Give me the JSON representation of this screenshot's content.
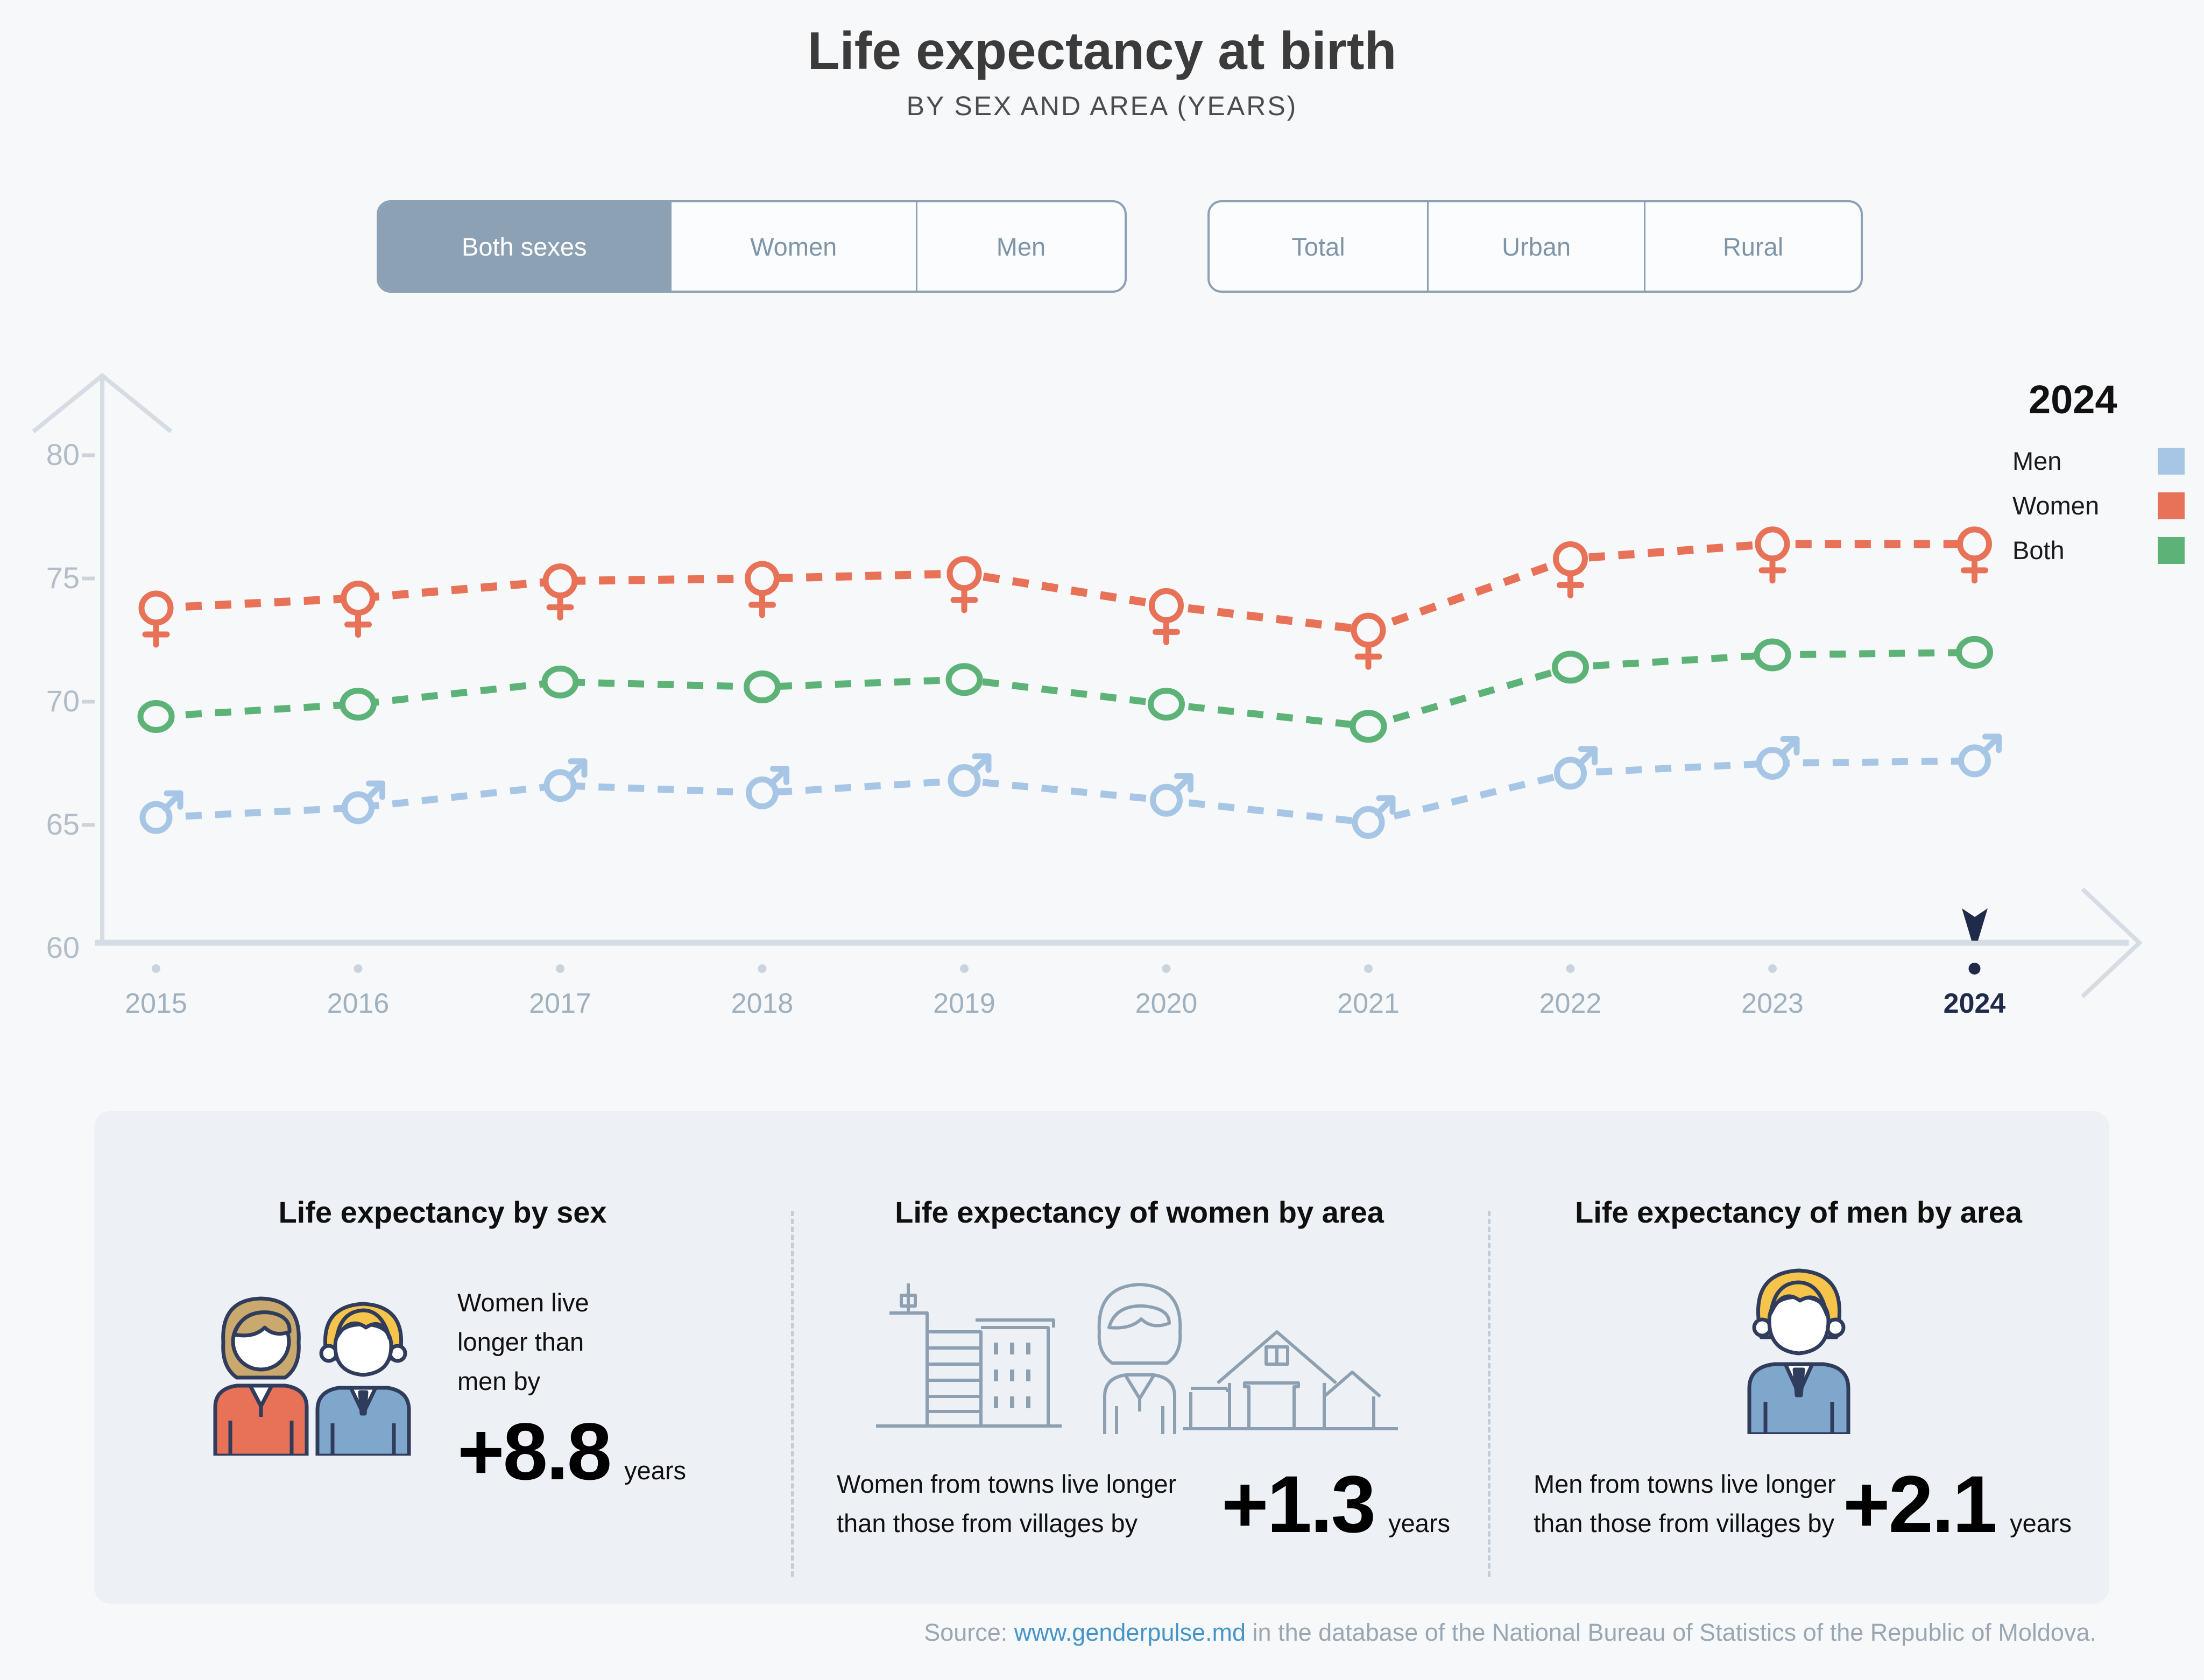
{
  "title": "Life expectancy at birth",
  "subtitle": "BY SEX AND AREA (YEARS)",
  "toggles": {
    "sex": {
      "options": [
        "Both sexes",
        "Women",
        "Men"
      ],
      "selected": "Both sexes"
    },
    "area": {
      "options": [
        "Total",
        "Urban",
        "Rural"
      ],
      "selected": ""
    }
  },
  "legend": {
    "title": "2024",
    "items": [
      {
        "label": "Men",
        "color": "#a7c6e5"
      },
      {
        "label": "Women",
        "color": "#e77258"
      },
      {
        "label": "Both",
        "color": "#5db377"
      }
    ]
  },
  "chart_data": {
    "type": "line",
    "x": [
      2015,
      2016,
      2017,
      2018,
      2019,
      2020,
      2021,
      2022,
      2023,
      2024
    ],
    "series": [
      {
        "name": "Women",
        "marker": "female",
        "color": "#e77258",
        "values": [
          73.8,
          74.2,
          74.9,
          75.0,
          75.2,
          73.9,
          72.9,
          75.8,
          76.4,
          76.4
        ]
      },
      {
        "name": "Both",
        "marker": "circle",
        "color": "#5db377",
        "values": [
          69.4,
          69.9,
          70.8,
          70.6,
          70.9,
          69.9,
          69.0,
          71.4,
          71.9,
          72.0
        ]
      },
      {
        "name": "Men",
        "marker": "male",
        "color": "#a7c6e5",
        "values": [
          65.3,
          65.7,
          66.6,
          66.3,
          66.8,
          66.0,
          65.1,
          67.1,
          67.5,
          67.6
        ]
      }
    ],
    "title": "Life expectancy at birth by sex (years)",
    "xlabel": "",
    "ylabel": "",
    "yticks": [
      60,
      65,
      70,
      75,
      80
    ],
    "ylim": [
      60,
      82
    ],
    "grid": false,
    "line_style": "dashed",
    "highlight_year": 2024,
    "axis_color": "#d6dce3",
    "tick_label_color": "#b3bdc7",
    "highlight_color": "#1f2b49"
  },
  "cards": [
    {
      "title": "Life expectancy by sex",
      "lines": [
        "Women live",
        "longer than",
        "men by"
      ],
      "value": "+8.8",
      "unit": "years"
    },
    {
      "title": "Life expectancy of women by area",
      "lines": [
        "Women from towns live longer",
        "than those from villages by"
      ],
      "value": "+1.3",
      "unit": "years"
    },
    {
      "title": "Life expectancy of men by area",
      "lines": [
        "Men from towns live longer",
        "than those from villages by"
      ],
      "value": "+2.1",
      "unit": "years"
    }
  ],
  "source": {
    "prefix": "Source: ",
    "link": "www.genderpulse.md",
    "suffix": " in the database of the National Bureau of Statistics of the Republic of Moldova."
  }
}
